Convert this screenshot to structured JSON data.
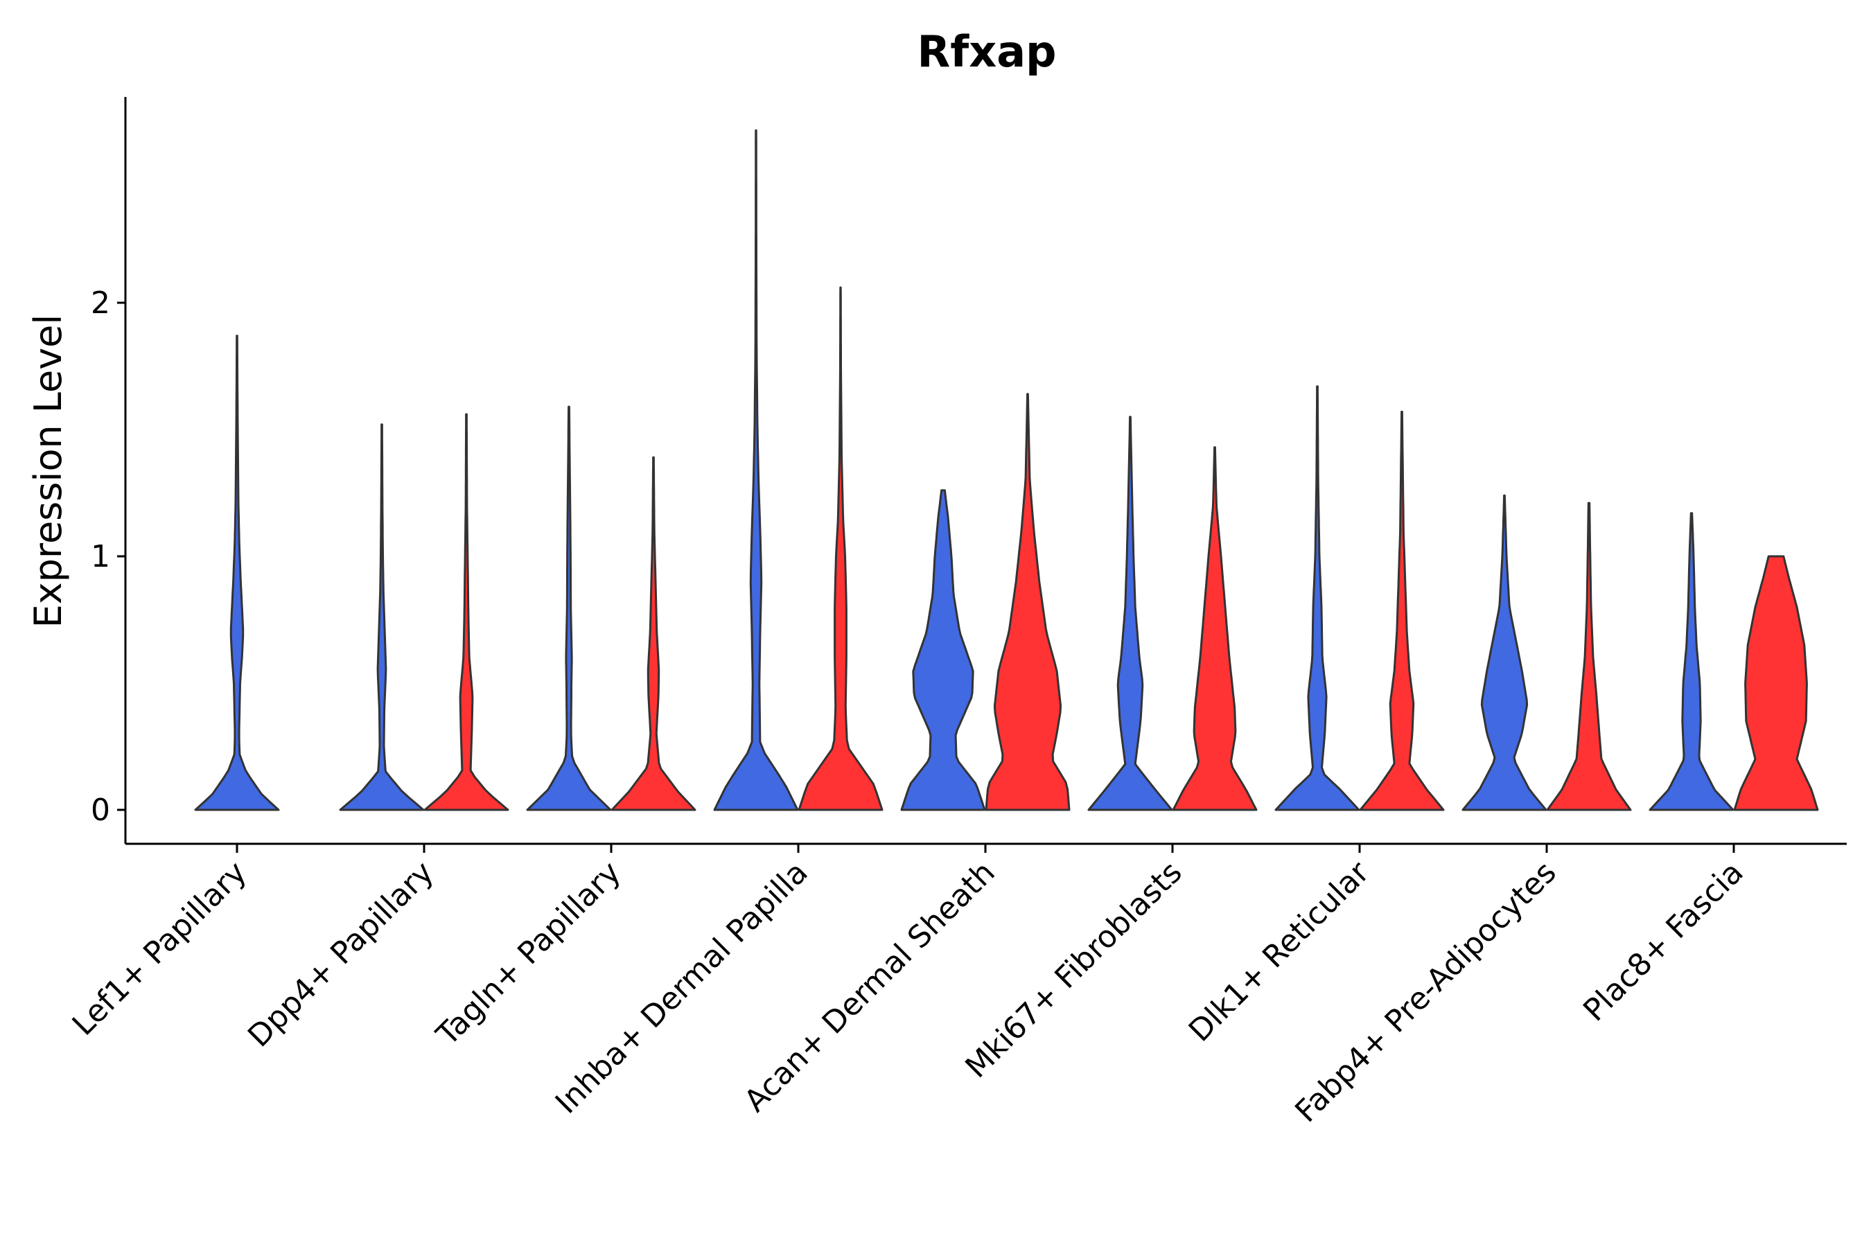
{
  "chart_data": {
    "type": "violin",
    "title": "Rfxap",
    "xlabel": "",
    "ylabel": "Expression Level",
    "ylim": [
      -0.13,
      2.8
    ],
    "yticks": [
      0,
      1,
      2
    ],
    "grid": false,
    "legend": "none",
    "series": [
      {
        "name": "group1",
        "color": "#4169E1"
      },
      {
        "name": "group2",
        "color": "#FF3333"
      }
    ],
    "categories": [
      "Lef1+ Papillary",
      "Dpp4+ Papillary",
      "Tagln+ Papillary",
      "Inhba+ Dermal Papilla",
      "Acan+ Dermal Sheath",
      "Mki67+ Fibroblasts",
      "Dlk1+ Reticular",
      "Fabp4+ Pre-Adipocytes",
      "Plac8+ Fascia"
    ],
    "violins": [
      {
        "category": "Lef1+ Papillary",
        "series": "group1",
        "max": 1.87,
        "density": [
          [
            0,
            1.0
          ],
          [
            0.06,
            0.6
          ],
          [
            0.15,
            0.22
          ],
          [
            0.22,
            0.06
          ],
          [
            0.3,
            0.05
          ],
          [
            0.5,
            0.075
          ],
          [
            0.6,
            0.12
          ],
          [
            0.7,
            0.15
          ],
          [
            0.8,
            0.12
          ],
          [
            0.9,
            0.09
          ],
          [
            1.05,
            0.055
          ],
          [
            1.2,
            0.035
          ],
          [
            1.45,
            0.02
          ],
          [
            1.7,
            0.01
          ],
          [
            1.87,
            0.005
          ]
        ]
      },
      {
        "category": "Dpp4+ Papillary",
        "series": "group1",
        "max": 1.52,
        "density": [
          [
            0,
            1.0
          ],
          [
            0.07,
            0.5
          ],
          [
            0.15,
            0.09
          ],
          [
            0.25,
            0.05
          ],
          [
            0.4,
            0.06
          ],
          [
            0.55,
            0.1
          ],
          [
            0.7,
            0.07
          ],
          [
            0.85,
            0.04
          ],
          [
            1.0,
            0.025
          ],
          [
            1.2,
            0.015
          ],
          [
            1.52,
            0.006
          ]
        ]
      },
      {
        "category": "Dpp4+ Papillary",
        "series": "group2",
        "max": 1.56,
        "density": [
          [
            0,
            1.0
          ],
          [
            0.07,
            0.5
          ],
          [
            0.15,
            0.1
          ],
          [
            0.3,
            0.13
          ],
          [
            0.45,
            0.15
          ],
          [
            0.6,
            0.07
          ],
          [
            0.75,
            0.05
          ],
          [
            0.95,
            0.035
          ],
          [
            1.2,
            0.015
          ],
          [
            1.56,
            0.006
          ]
        ]
      },
      {
        "category": "Tagln+ Papillary",
        "series": "group1",
        "max": 1.59,
        "density": [
          [
            0,
            1.0
          ],
          [
            0.08,
            0.5
          ],
          [
            0.2,
            0.08
          ],
          [
            0.3,
            0.05
          ],
          [
            0.5,
            0.06
          ],
          [
            0.6,
            0.07
          ],
          [
            0.8,
            0.045
          ],
          [
            1.0,
            0.04
          ],
          [
            1.2,
            0.03
          ],
          [
            1.59,
            0.006
          ]
        ]
      },
      {
        "category": "Tagln+ Papillary",
        "series": "group2",
        "max": 1.39,
        "density": [
          [
            0,
            1.0
          ],
          [
            0.07,
            0.6
          ],
          [
            0.17,
            0.14
          ],
          [
            0.3,
            0.07
          ],
          [
            0.45,
            0.12
          ],
          [
            0.55,
            0.13
          ],
          [
            0.7,
            0.08
          ],
          [
            0.9,
            0.05
          ],
          [
            1.1,
            0.02
          ],
          [
            1.39,
            0.006
          ]
        ]
      },
      {
        "category": "Inhba+ Dermal Papilla",
        "series": "group1",
        "max": 2.68,
        "density": [
          [
            0,
            1.0
          ],
          [
            0.1,
            0.7
          ],
          [
            0.25,
            0.1
          ],
          [
            0.5,
            0.08
          ],
          [
            0.7,
            0.1
          ],
          [
            0.9,
            0.13
          ],
          [
            1.1,
            0.1
          ],
          [
            1.3,
            0.06
          ],
          [
            1.5,
            0.035
          ],
          [
            1.8,
            0.015
          ],
          [
            2.2,
            0.008
          ],
          [
            2.68,
            0.004
          ]
        ]
      },
      {
        "category": "Inhba+ Dermal Papilla",
        "series": "group2",
        "max": 2.06,
        "density": [
          [
            0,
            1.0
          ],
          [
            0.1,
            0.8
          ],
          [
            0.25,
            0.16
          ],
          [
            0.4,
            0.12
          ],
          [
            0.6,
            0.14
          ],
          [
            0.8,
            0.14
          ],
          [
            1.0,
            0.11
          ],
          [
            1.15,
            0.06
          ],
          [
            1.4,
            0.025
          ],
          [
            1.7,
            0.01
          ],
          [
            2.06,
            0.004
          ]
        ]
      },
      {
        "category": "Acan+ Dermal Sheath",
        "series": "group1",
        "max": 1.26,
        "density": [
          [
            0,
            1.0
          ],
          [
            0.1,
            0.8
          ],
          [
            0.2,
            0.32
          ],
          [
            0.3,
            0.3
          ],
          [
            0.45,
            0.7
          ],
          [
            0.55,
            0.72
          ],
          [
            0.7,
            0.4
          ],
          [
            0.85,
            0.25
          ],
          [
            1.0,
            0.2
          ],
          [
            1.15,
            0.12
          ],
          [
            1.26,
            0.04
          ]
        ]
      },
      {
        "category": "Acan+ Dermal Sheath",
        "series": "group2",
        "max": 1.64,
        "density": [
          [
            0,
            1.0
          ],
          [
            0.1,
            0.95
          ],
          [
            0.2,
            0.58
          ],
          [
            0.3,
            0.7
          ],
          [
            0.4,
            0.8
          ],
          [
            0.55,
            0.7
          ],
          [
            0.7,
            0.45
          ],
          [
            0.9,
            0.28
          ],
          [
            1.1,
            0.15
          ],
          [
            1.3,
            0.05
          ],
          [
            1.64,
            0.006
          ]
        ]
      },
      {
        "category": "Mki67+ Fibroblasts",
        "series": "group1",
        "max": 1.55,
        "density": [
          [
            0,
            1.0
          ],
          [
            0.08,
            0.6
          ],
          [
            0.18,
            0.12
          ],
          [
            0.35,
            0.25
          ],
          [
            0.5,
            0.3
          ],
          [
            0.6,
            0.22
          ],
          [
            0.8,
            0.12
          ],
          [
            1.0,
            0.08
          ],
          [
            1.2,
            0.05
          ],
          [
            1.55,
            0.006
          ]
        ]
      },
      {
        "category": "Mki67+ Fibroblasts",
        "series": "group2",
        "max": 1.43,
        "density": [
          [
            0,
            1.0
          ],
          [
            0.08,
            0.75
          ],
          [
            0.18,
            0.38
          ],
          [
            0.3,
            0.5
          ],
          [
            0.4,
            0.48
          ],
          [
            0.6,
            0.35
          ],
          [
            0.8,
            0.25
          ],
          [
            1.0,
            0.15
          ],
          [
            1.2,
            0.04
          ],
          [
            1.43,
            0.006
          ]
        ]
      },
      {
        "category": "Dlk1+ Reticular",
        "series": "group1",
        "max": 1.67,
        "density": [
          [
            0,
            1.0
          ],
          [
            0.08,
            0.55
          ],
          [
            0.15,
            0.1
          ],
          [
            0.3,
            0.18
          ],
          [
            0.45,
            0.22
          ],
          [
            0.6,
            0.12
          ],
          [
            0.8,
            0.1
          ],
          [
            1.0,
            0.05
          ],
          [
            1.3,
            0.02
          ],
          [
            1.67,
            0.006
          ]
        ]
      },
      {
        "category": "Dlk1+ Reticular",
        "series": "group2",
        "max": 1.57,
        "density": [
          [
            0,
            1.0
          ],
          [
            0.08,
            0.6
          ],
          [
            0.18,
            0.18
          ],
          [
            0.3,
            0.25
          ],
          [
            0.42,
            0.28
          ],
          [
            0.55,
            0.18
          ],
          [
            0.7,
            0.12
          ],
          [
            0.9,
            0.08
          ],
          [
            1.1,
            0.04
          ],
          [
            1.57,
            0.006
          ]
        ]
      },
      {
        "category": "Fabp4+ Pre-Adipocytes",
        "series": "group1",
        "max": 1.24,
        "density": [
          [
            0,
            1.0
          ],
          [
            0.08,
            0.6
          ],
          [
            0.2,
            0.22
          ],
          [
            0.3,
            0.42
          ],
          [
            0.42,
            0.55
          ],
          [
            0.55,
            0.42
          ],
          [
            0.65,
            0.3
          ],
          [
            0.8,
            0.12
          ],
          [
            1.0,
            0.05
          ],
          [
            1.24,
            0.006
          ]
        ]
      },
      {
        "category": "Fabp4+ Pre-Adipocytes",
        "series": "group2",
        "max": 1.21,
        "density": [
          [
            0,
            1.0
          ],
          [
            0.08,
            0.65
          ],
          [
            0.2,
            0.3
          ],
          [
            0.3,
            0.25
          ],
          [
            0.45,
            0.18
          ],
          [
            0.6,
            0.1
          ],
          [
            0.8,
            0.05
          ],
          [
            1.0,
            0.03
          ],
          [
            1.2,
            0.012
          ]
        ]
      },
      {
        "category": "Plac8+ Fascia",
        "series": "group1",
        "max": 1.17,
        "density": [
          [
            0,
            1.0
          ],
          [
            0.08,
            0.55
          ],
          [
            0.2,
            0.18
          ],
          [
            0.35,
            0.22
          ],
          [
            0.5,
            0.2
          ],
          [
            0.65,
            0.12
          ],
          [
            0.8,
            0.08
          ],
          [
            1.0,
            0.05
          ],
          [
            1.17,
            0.012
          ]
        ]
      },
      {
        "category": "Plac8+ Fascia",
        "series": "group2",
        "max": 1.0,
        "density": [
          [
            0,
            1.0
          ],
          [
            0.08,
            0.85
          ],
          [
            0.2,
            0.5
          ],
          [
            0.35,
            0.72
          ],
          [
            0.5,
            0.74
          ],
          [
            0.65,
            0.68
          ],
          [
            0.8,
            0.5
          ],
          [
            0.92,
            0.3
          ],
          [
            1.0,
            0.18
          ]
        ]
      }
    ]
  }
}
